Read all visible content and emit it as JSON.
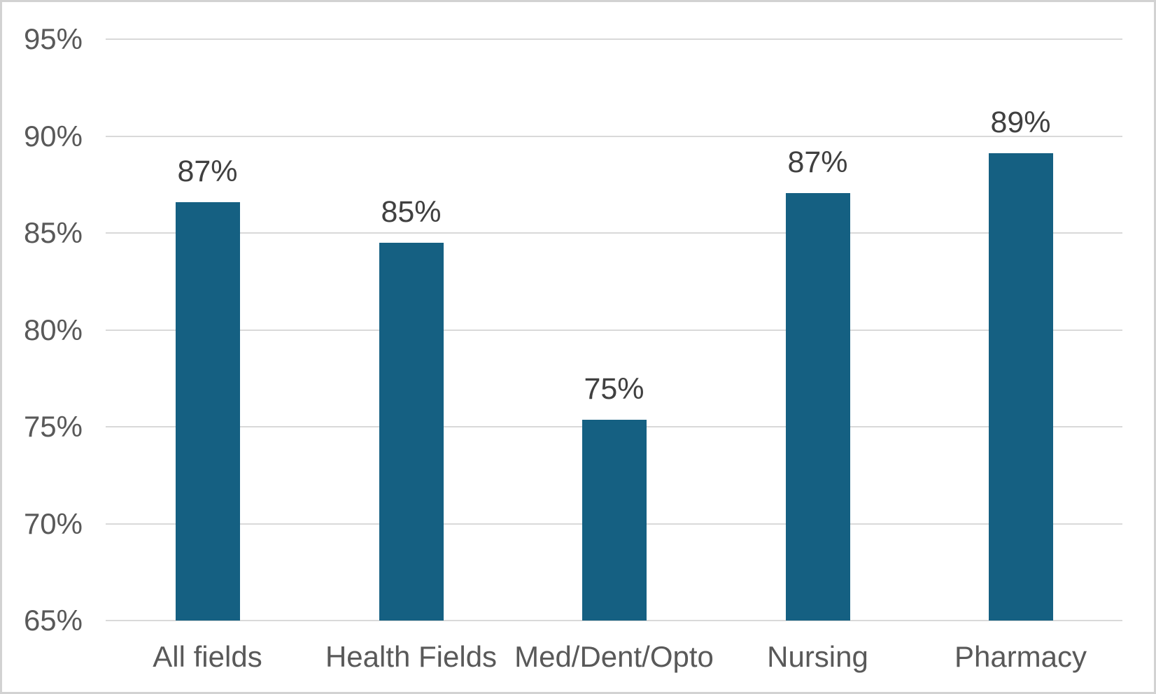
{
  "chart_data": {
    "type": "bar",
    "title": "",
    "categories": [
      "All fields",
      "Health Fields",
      "Med/Dent/Opto",
      "Nursing",
      "Pharmacy"
    ],
    "values": [
      87,
      85,
      75,
      87,
      89
    ],
    "value_labels": [
      "87%",
      "85%",
      "75%",
      "87%",
      "89%"
    ],
    "bar_precise_pct": [
      86.6,
      84.5,
      75.35,
      87.05,
      89.1
    ],
    "ylim": [
      65,
      95
    ],
    "ytick_step": 5,
    "ytick_labels": [
      "95%",
      "90%",
      "85%",
      "80%",
      "75%",
      "70%",
      "65%"
    ],
    "xlabel": "",
    "ylabel": "",
    "grid": true,
    "legend": false,
    "colors": {
      "bar": "#156082",
      "gridline": "#d9d9d9",
      "axis_label": "#595959",
      "data_label": "#404040",
      "background": "#ffffff",
      "frame_border": "#d2d2d2"
    }
  }
}
